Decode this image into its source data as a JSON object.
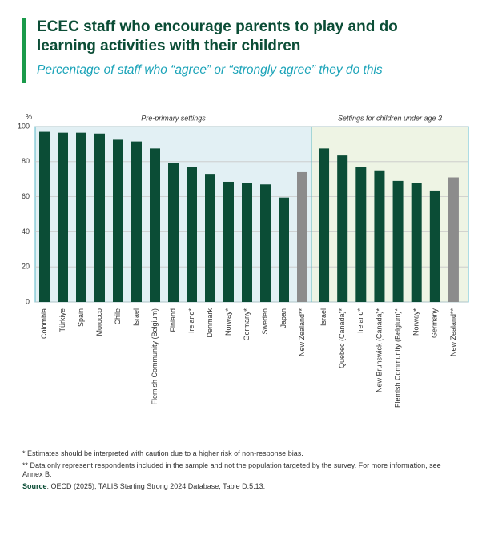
{
  "chart_data": {
    "type": "bar",
    "title": [
      "ECEC staff who encourage parents to play and do",
      "learning activities with their children"
    ],
    "subtitle": "Percentage of staff who “agree” or “strongly agree” they do this",
    "y_label": "%",
    "ylim": [
      0,
      100
    ],
    "yticks": [
      0,
      20,
      40,
      60,
      80,
      100
    ],
    "grid": true,
    "panels": [
      {
        "title": "Pre-primary settings",
        "background": "#e2f0f4",
        "categories": [
          "Colombia",
          "Türkiye",
          "Spain",
          "Morocco",
          "Chile",
          "Israel",
          "Flemish Community (Belgium)",
          "Finland",
          "Ireland*",
          "Denmark",
          "Norway*",
          "Germany*",
          "Sweden",
          "Japan",
          "New Zealand**"
        ],
        "values": [
          97,
          96.5,
          96.5,
          96,
          92.5,
          91.5,
          87.5,
          79,
          77,
          73,
          68.5,
          68,
          67,
          59.5,
          74
        ],
        "colors": [
          "#0b4d36",
          "#0b4d36",
          "#0b4d36",
          "#0b4d36",
          "#0b4d36",
          "#0b4d36",
          "#0b4d36",
          "#0b4d36",
          "#0b4d36",
          "#0b4d36",
          "#0b4d36",
          "#0b4d36",
          "#0b4d36",
          "#0b4d36",
          "#8c8c8c"
        ]
      },
      {
        "title": "Settings for children under age 3",
        "background": "#eef4e4",
        "categories": [
          "Israel",
          "Quebec (Canada)*",
          "Ireland*",
          "New Brunswick (Canada)*",
          "Flemish Community (Belgium)*",
          "Norway*",
          "Germany",
          "New Zealand**"
        ],
        "values": [
          87.5,
          83.5,
          77,
          75,
          69,
          68,
          63.5,
          71
        ],
        "colors": [
          "#0b4d36",
          "#0b4d36",
          "#0b4d36",
          "#0b4d36",
          "#0b4d36",
          "#0b4d36",
          "#0b4d36",
          "#8c8c8c"
        ]
      }
    ],
    "notes": [
      "* Estimates should be interpreted with caution due to a higher risk of non-response bias.",
      "** Data only represent respondents included in the sample and not the population targeted by the survey. For more information, see Annex B."
    ],
    "source": {
      "label": "Source",
      "text": ": OECD (2025), TALIS Starting Strong 2024 Database, Table D.5.13."
    }
  }
}
